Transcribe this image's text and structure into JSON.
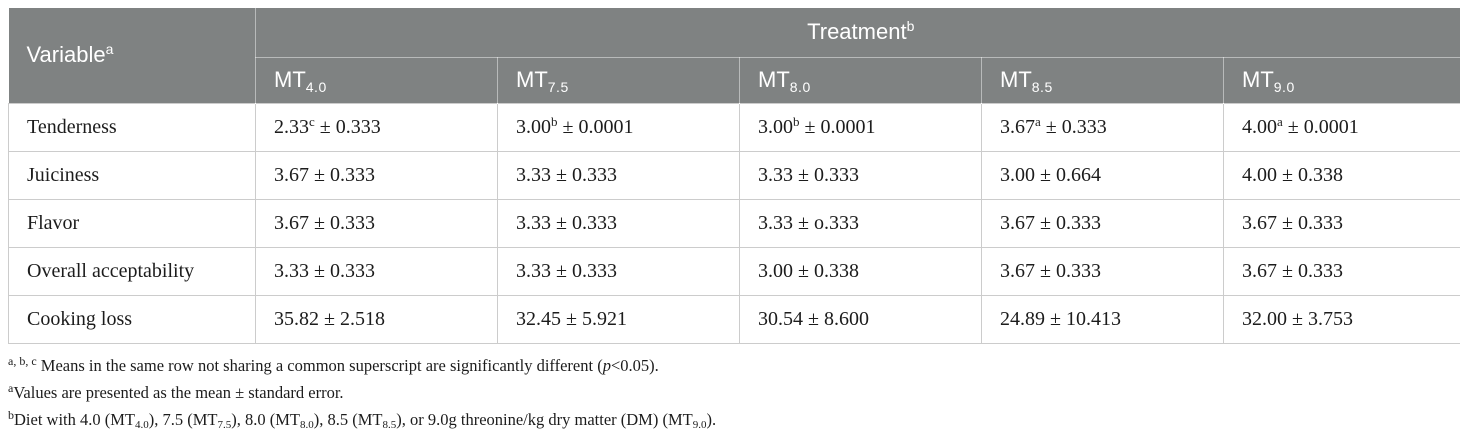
{
  "colors": {
    "header_bg": "#7f8282",
    "header_text": "#ffffff",
    "body_border": "#cccccc",
    "body_text": "#1c1c1c"
  },
  "header": {
    "variable": {
      "label": "Variable",
      "sup": "a"
    },
    "treatment": {
      "label": "Treatment",
      "sup": "b"
    },
    "columns": [
      {
        "base": "MT",
        "sub": "4.0"
      },
      {
        "base": "MT",
        "sub": "7.5"
      },
      {
        "base": "MT",
        "sub": "8.0"
      },
      {
        "base": "MT",
        "sub": "8.5"
      },
      {
        "base": "MT",
        "sub": "9.0"
      }
    ]
  },
  "rows": [
    {
      "label": "Tenderness",
      "cells": [
        {
          "mean": "2.33",
          "sup": "c",
          "rest": " ± 0.333"
        },
        {
          "mean": "3.00",
          "sup": "b",
          "rest": " ± 0.0001"
        },
        {
          "mean": "3.00",
          "sup": "b",
          "rest": " ± 0.0001"
        },
        {
          "mean": "3.67",
          "sup": "a",
          "rest": " ± 0.333"
        },
        {
          "mean": "4.00",
          "sup": "a",
          "rest": " ± 0.0001"
        }
      ]
    },
    {
      "label": "Juiciness",
      "cells": [
        {
          "mean": "3.67",
          "sup": "",
          "rest": " ± 0.333"
        },
        {
          "mean": "3.33",
          "sup": "",
          "rest": " ± 0.333"
        },
        {
          "mean": "3.33",
          "sup": "",
          "rest": " ± 0.333"
        },
        {
          "mean": "3.00",
          "sup": "",
          "rest": " ± 0.664"
        },
        {
          "mean": "4.00",
          "sup": "",
          "rest": " ± 0.338"
        }
      ]
    },
    {
      "label": "Flavor",
      "cells": [
        {
          "mean": "3.67",
          "sup": "",
          "rest": " ± 0.333"
        },
        {
          "mean": "3.33",
          "sup": "",
          "rest": " ± 0.333"
        },
        {
          "mean": "3.33",
          "sup": "",
          "rest": " ± o.333"
        },
        {
          "mean": "3.67",
          "sup": "",
          "rest": " ± 0.333"
        },
        {
          "mean": "3.67",
          "sup": "",
          "rest": " ± 0.333"
        }
      ]
    },
    {
      "label": "Overall acceptability",
      "cells": [
        {
          "mean": "3.33",
          "sup": "",
          "rest": " ± 0.333"
        },
        {
          "mean": "3.33",
          "sup": "",
          "rest": " ± 0.333"
        },
        {
          "mean": "3.00",
          "sup": "",
          "rest": " ± 0.338"
        },
        {
          "mean": "3.67",
          "sup": "",
          "rest": " ± 0.333"
        },
        {
          "mean": "3.67",
          "sup": "",
          "rest": " ± 0.333"
        }
      ]
    },
    {
      "label": "Cooking loss",
      "cells": [
        {
          "mean": "35.82",
          "sup": "",
          "rest": " ± 2.518"
        },
        {
          "mean": "32.45",
          "sup": "",
          "rest": " ± 5.921"
        },
        {
          "mean": "30.54",
          "sup": "",
          "rest": " ± 8.600"
        },
        {
          "mean": "24.89",
          "sup": "",
          "rest": " ± 10.413"
        },
        {
          "mean": "32.00",
          "sup": "",
          "rest": " ± 3.753"
        }
      ]
    }
  ],
  "footnotes": {
    "note1": {
      "sup": "a, b, c",
      "pre": " Means in the same row not sharing a common superscript are significantly different (",
      "italic": "p",
      "post": "<0.05)."
    },
    "note2": {
      "sup": "a",
      "text": "Values are presented as the mean ± standard error."
    },
    "note3": {
      "sup": "b",
      "seg1": "Diet with 4.0 (MT",
      "sub1": "4.0",
      "seg2": "), 7.5 (MT",
      "sub2": "7.5",
      "seg3": "), 8.0 (MT",
      "sub3": "8.0",
      "seg4": "), 8.5 (MT",
      "sub4": "8.5",
      "seg5": "), or 9.0g threonine/kg dry matter (DM) (MT",
      "sub5": "9.0",
      "seg6": ")."
    }
  }
}
